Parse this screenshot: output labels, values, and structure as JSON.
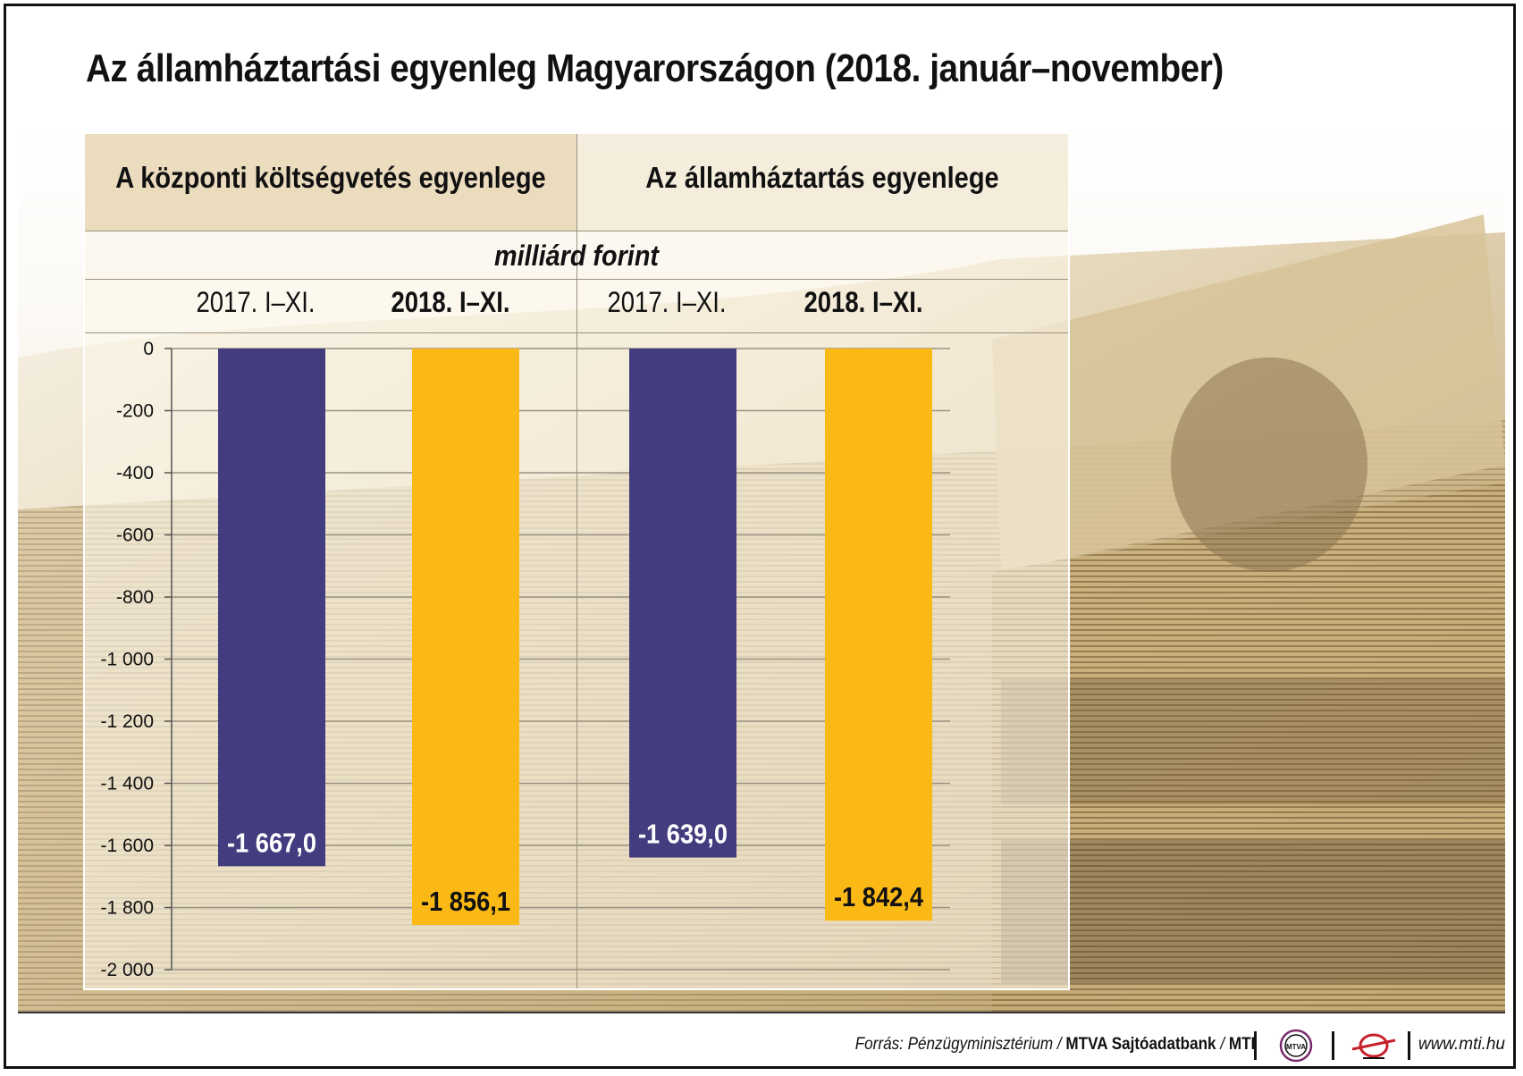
{
  "title": "Az államháztartási egyenleg Magyarországon (2018. január–november)",
  "groups": [
    {
      "title": "A központi költségvetés egyenlege"
    },
    {
      "title": "Az államháztartás egyenlege"
    }
  ],
  "unit_label": "milliárd forint",
  "column_labels": [
    "2017. I–XI.",
    "2018. I–XI.",
    "2017. I–XI.",
    "2018. I–XI."
  ],
  "colors": {
    "bar_2017": "#433c7e",
    "bar_2018": "#fbb916",
    "grid": "#9a9282"
  },
  "chart_data": {
    "type": "bar",
    "categories": [
      "2017. I–XI.",
      "2018. I–XI.",
      "2017. I–XI.",
      "2018. I–XI."
    ],
    "groups": [
      "A központi költségvetés egyenlege",
      "Az államháztartás egyenlege"
    ],
    "values": [
      -1667.0,
      -1856.1,
      -1639.0,
      -1842.4
    ],
    "value_labels": [
      "-1 667,0",
      "-1 856,1",
      "-1 639,0",
      "-1 842,4"
    ],
    "yticks": [
      "0",
      "-200",
      "-400",
      "-600",
      "-800",
      "-1 000",
      "-1 200",
      "-1 400",
      "-1 600",
      "-1 800",
      "-2 000"
    ],
    "ylim": [
      -2000,
      0
    ],
    "ylabel": "milliárd forint",
    "grid": true
  },
  "footer": {
    "source_prefix": "Forrás: Pénzügyminisztérium / ",
    "source_bold": "MTVA Sajtóadatbank",
    "source_sep": " / ",
    "source_mti": "MTI",
    "logo1_text": "MTVA",
    "url": "www.mti.hu"
  }
}
